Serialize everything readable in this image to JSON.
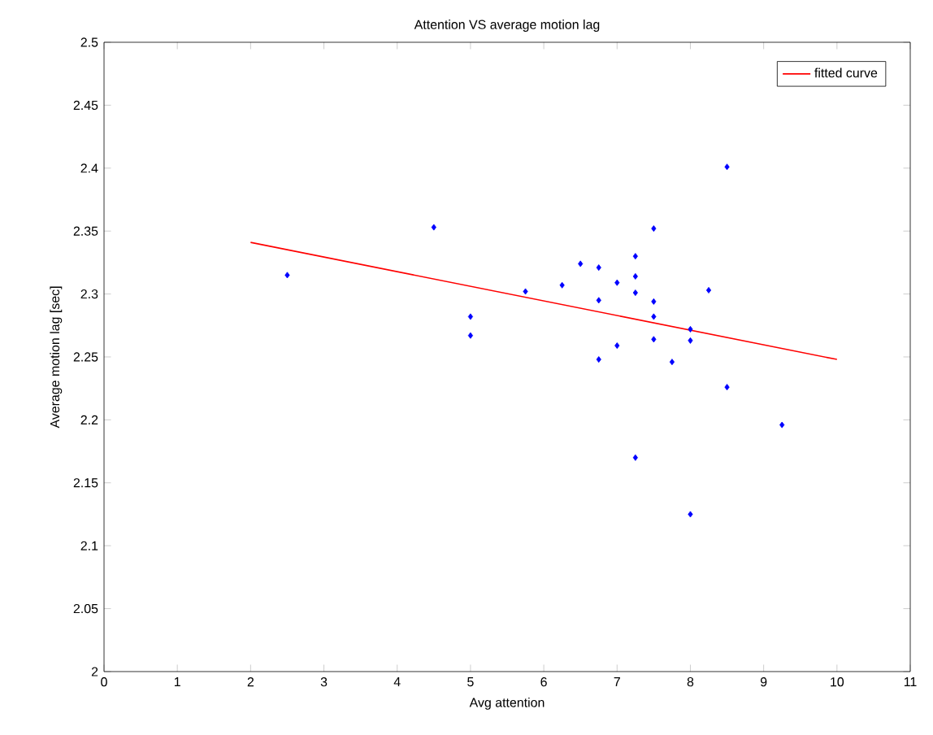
{
  "chart_data": {
    "type": "scatter",
    "title": "Attention VS average motion lag",
    "xlabel": "Avg attention",
    "ylabel": "Average motion lag [sec]",
    "xlim": [
      0,
      11
    ],
    "ylim": [
      2,
      2.5
    ],
    "xticks": [
      0,
      1,
      2,
      3,
      4,
      5,
      6,
      7,
      8,
      9,
      10,
      11
    ],
    "yticks": [
      2,
      2.05,
      2.1,
      2.15,
      2.2,
      2.25,
      2.3,
      2.35,
      2.4,
      2.45,
      2.5
    ],
    "grid": false,
    "legend": "top right",
    "series": [
      {
        "marker": "diamond",
        "color": "#0000ff",
        "x": [
          2.5,
          4.5,
          5,
          5,
          5.75,
          6.25,
          6.5,
          6.75,
          6.75,
          6.75,
          7,
          7,
          7.25,
          7.25,
          7.25,
          7.25,
          7.5,
          7.5,
          7.5,
          7.5,
          7.75,
          8,
          8,
          8,
          8.25,
          8.5,
          8.5,
          9.25
        ],
        "values": [
          2.315,
          2.353,
          2.282,
          2.267,
          2.302,
          2.307,
          2.324,
          2.321,
          2.295,
          2.248,
          2.309,
          2.259,
          2.33,
          2.314,
          2.301,
          2.17,
          2.352,
          2.294,
          2.282,
          2.264,
          2.246,
          2.272,
          2.263,
          2.125,
          2.303,
          2.401,
          2.226,
          2.196
        ]
      },
      {
        "type": "line",
        "name": "fitted curve",
        "color": "#ff0000",
        "x": [
          2,
          10
        ],
        "values": [
          2.341,
          2.248
        ]
      }
    ]
  }
}
